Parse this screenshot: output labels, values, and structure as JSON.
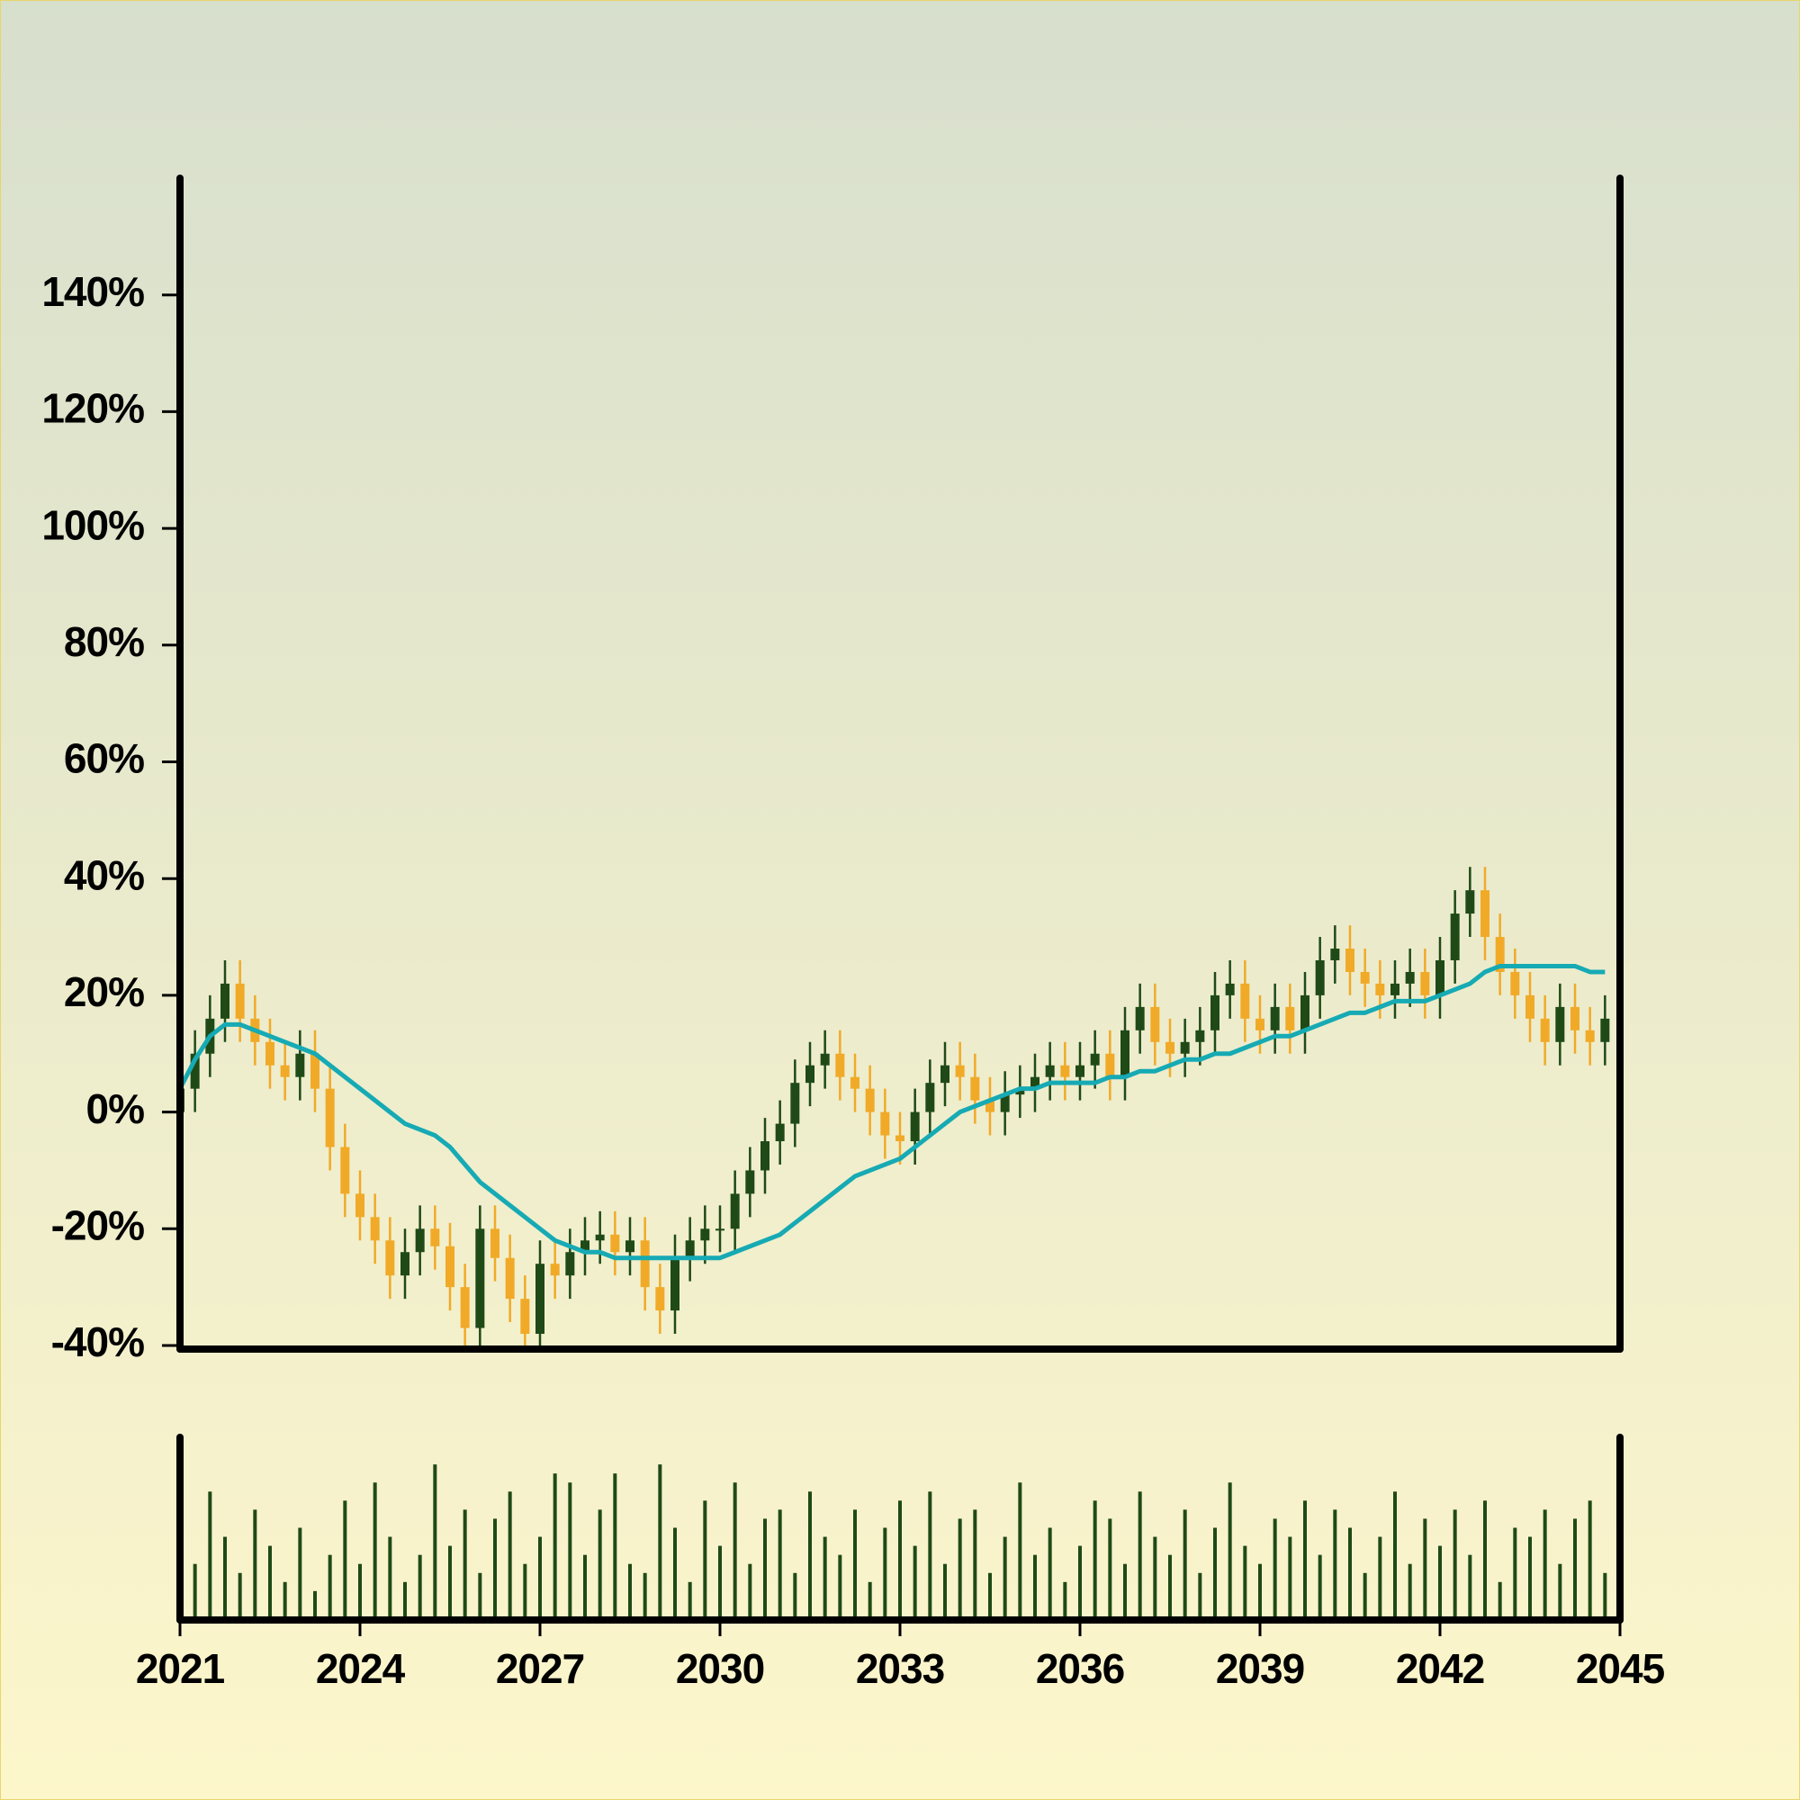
{
  "chart_data": {
    "type": "candlestick",
    "x": [
      2021,
      2021.25,
      2021.5,
      2021.75,
      2022,
      2022.25,
      2022.5,
      2022.75,
      2023,
      2023.25,
      2023.5,
      2023.75,
      2024,
      2024.25,
      2024.5,
      2024.75,
      2025,
      2025.25,
      2025.5,
      2025.75,
      2026,
      2026.25,
      2026.5,
      2026.75,
      2027,
      2027.25,
      2027.5,
      2027.75,
      2028,
      2028.25,
      2028.5,
      2028.75,
      2029,
      2029.25,
      2029.5,
      2029.75,
      2030,
      2030.25,
      2030.5,
      2030.75,
      2031,
      2031.25,
      2031.5,
      2031.75,
      2032,
      2032.25,
      2032.5,
      2032.75,
      2033,
      2033.25,
      2033.5,
      2033.75,
      2034,
      2034.25,
      2034.5,
      2034.75,
      2035,
      2035.25,
      2035.5,
      2035.75,
      2036,
      2036.25,
      2036.5,
      2036.75,
      2037,
      2037.25,
      2037.5,
      2037.75,
      2038,
      2038.25,
      2038.5,
      2038.75,
      2039,
      2039.25,
      2039.5,
      2039.75,
      2040,
      2040.25,
      2040.5,
      2040.75,
      2041,
      2041.25,
      2041.5,
      2041.75,
      2042,
      2042.25,
      2042.5,
      2042.75,
      2043,
      2043.25,
      2043.5,
      2043.75,
      2044,
      2044.25,
      2044.5,
      2044.75
    ],
    "open": [
      0,
      4,
      10,
      16,
      22,
      16,
      12,
      8,
      6,
      10,
      4,
      -6,
      -14,
      -18,
      -22,
      -28,
      -24,
      -20,
      -23,
      -30,
      -37,
      -20,
      -25,
      -32,
      -38,
      -26,
      -28,
      -24,
      -22,
      -21,
      -24,
      -22,
      -30,
      -34,
      -25,
      -22,
      -20,
      -20,
      -14,
      -10,
      -5,
      -2,
      5,
      8,
      10,
      6,
      4,
      0,
      -4,
      -5,
      0,
      5,
      8,
      6,
      2,
      0,
      3,
      4,
      6,
      8,
      6,
      8,
      10,
      6,
      14,
      18,
      12,
      10,
      12,
      14,
      20,
      22,
      16,
      14,
      18,
      14,
      20,
      26,
      28,
      24,
      22,
      20,
      22,
      24,
      20,
      26,
      34,
      38,
      30,
      24,
      20,
      16,
      12,
      18,
      14,
      12
    ],
    "high": [
      8,
      14,
      20,
      26,
      26,
      20,
      16,
      12,
      14,
      14,
      8,
      -2,
      -10,
      -14,
      -18,
      -20,
      -16,
      -16,
      -19,
      -26,
      -16,
      -16,
      -21,
      -28,
      -22,
      -22,
      -20,
      -18,
      -17,
      -17,
      -18,
      -18,
      -26,
      -21,
      -18,
      -16,
      -16,
      -10,
      -6,
      -1,
      2,
      9,
      12,
      14,
      14,
      10,
      8,
      4,
      0,
      4,
      9,
      12,
      12,
      10,
      6,
      7,
      8,
      10,
      12,
      12,
      12,
      14,
      14,
      18,
      22,
      22,
      16,
      16,
      18,
      24,
      26,
      26,
      20,
      22,
      22,
      24,
      30,
      32,
      32,
      28,
      26,
      26,
      28,
      28,
      30,
      38,
      42,
      42,
      34,
      28,
      24,
      20,
      22,
      22,
      18,
      20
    ],
    "low": [
      -4,
      0,
      6,
      12,
      12,
      8,
      4,
      2,
      2,
      0,
      -10,
      -18,
      -22,
      -26,
      -32,
      -32,
      -28,
      -27,
      -34,
      -41,
      -41,
      -29,
      -36,
      -42,
      -42,
      -32,
      -32,
      -28,
      -26,
      -28,
      -28,
      -34,
      -38,
      -38,
      -29,
      -26,
      -24,
      -24,
      -18,
      -14,
      -9,
      -6,
      1,
      4,
      2,
      0,
      -4,
      -8,
      -9,
      -9,
      -4,
      1,
      2,
      -2,
      -4,
      -4,
      -1,
      0,
      2,
      2,
      2,
      4,
      2,
      2,
      10,
      8,
      6,
      6,
      8,
      10,
      16,
      12,
      10,
      10,
      10,
      10,
      16,
      22,
      20,
      18,
      16,
      16,
      18,
      16,
      16,
      22,
      30,
      26,
      20,
      16,
      12,
      8,
      8,
      10,
      8,
      8
    ],
    "close": [
      4,
      10,
      16,
      22,
      16,
      12,
      8,
      6,
      10,
      4,
      -6,
      -14,
      -18,
      -22,
      -28,
      -24,
      -20,
      -23,
      -30,
      -37,
      -20,
      -25,
      -32,
      -38,
      -26,
      -28,
      -24,
      -22,
      -21,
      -24,
      -22,
      -30,
      -34,
      -25,
      -22,
      -20,
      -20,
      -14,
      -10,
      -5,
      -2,
      5,
      8,
      10,
      6,
      4,
      0,
      -4,
      -5,
      0,
      5,
      8,
      6,
      2,
      0,
      3,
      4,
      6,
      8,
      6,
      8,
      10,
      6,
      14,
      18,
      12,
      10,
      12,
      14,
      20,
      22,
      16,
      14,
      18,
      14,
      20,
      26,
      28,
      24,
      22,
      20,
      22,
      24,
      20,
      26,
      34,
      38,
      30,
      24,
      20,
      16,
      12,
      18,
      14,
      12,
      16
    ],
    "volume": [
      55,
      30,
      70,
      45,
      25,
      60,
      40,
      20,
      50,
      15,
      35,
      65,
      30,
      75,
      45,
      20,
      35,
      85,
      40,
      60,
      25,
      55,
      70,
      30,
      45,
      80,
      75,
      35,
      60,
      80,
      30,
      25,
      85,
      50,
      20,
      65,
      40,
      75,
      30,
      55,
      60,
      25,
      70,
      45,
      35,
      60,
      20,
      50,
      65,
      40,
      70,
      30,
      55,
      60,
      25,
      45,
      75,
      35,
      50,
      20,
      40,
      65,
      55,
      30,
      70,
      45,
      35,
      60,
      25,
      50,
      75,
      40,
      30,
      55,
      45,
      65,
      35,
      60,
      50,
      25,
      45,
      70,
      30,
      55,
      40,
      60,
      35,
      65,
      20,
      50,
      45,
      60,
      30,
      55,
      65,
      25
    ],
    "ma": [
      4,
      9,
      13,
      15,
      15,
      14,
      13,
      12,
      11,
      10,
      8,
      6,
      4,
      2,
      0,
      -2,
      -3,
      -4,
      -6,
      -9,
      -12,
      -14,
      -16,
      -18,
      -20,
      -22,
      -23,
      -24,
      -24,
      -25,
      -25,
      -25,
      -25,
      -25,
      -25,
      -25,
      -25,
      -24,
      -23,
      -22,
      -21,
      -19,
      -17,
      -15,
      -13,
      -11,
      -10,
      -9,
      -8,
      -6,
      -4,
      -2,
      0,
      1,
      2,
      3,
      4,
      4,
      5,
      5,
      5,
      5,
      6,
      6,
      7,
      7,
      8,
      9,
      9,
      10,
      10,
      11,
      12,
      13,
      13,
      14,
      15,
      16,
      17,
      17,
      18,
      19,
      19,
      19,
      20,
      21,
      22,
      24,
      25,
      25,
      25,
      25,
      25,
      25,
      24,
      24
    ],
    "up_color": "#1f4a17",
    "down_color": "#f0aa28",
    "ma_color": "#16aab4",
    "volume_color": "#1f4a17",
    "xlim": [
      2021,
      2045
    ],
    "xticks": [
      2021,
      2024,
      2027,
      2030,
      2033,
      2036,
      2039,
      2042,
      2045
    ],
    "ylim": [
      -40,
      160
    ],
    "yticks": [
      {
        "value": -40,
        "label": "-40%"
      },
      {
        "value": -20,
        "label": "-20%"
      },
      {
        "value": 0,
        "label": "0%"
      },
      {
        "value": 20,
        "label": "20%"
      },
      {
        "value": 40,
        "label": "40%"
      },
      {
        "value": 60,
        "label": "60%"
      },
      {
        "value": 80,
        "label": "80%"
      },
      {
        "value": 100,
        "label": "100%"
      },
      {
        "value": 120,
        "label": "120%"
      },
      {
        "value": 140,
        "label": "140%"
      }
    ],
    "volume_ylim": [
      0,
      100
    ]
  }
}
